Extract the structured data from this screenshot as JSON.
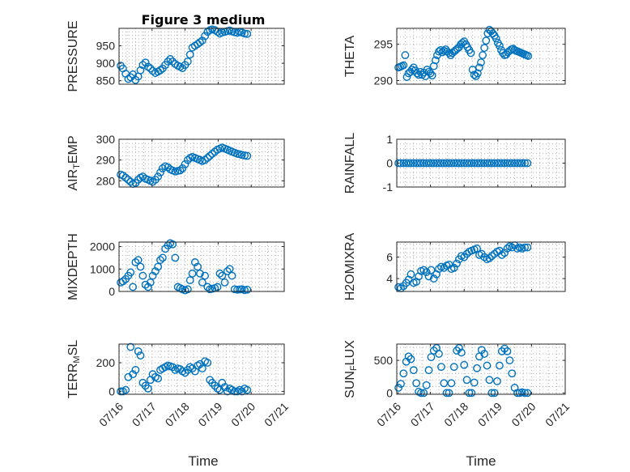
{
  "chart_data": {
    "type": "scatter",
    "title": "Figure 3 medium",
    "marker_color": "#0072BD",
    "xlabel": "Time",
    "x_tick_labels": [
      "07/16",
      "07/17",
      "07/18",
      "07/19",
      "07/20",
      "07/21"
    ],
    "xlim": [
      0,
      5
    ],
    "panels": [
      {
        "ylabel": "PRESSURE",
        "yticks": [
          850,
          900,
          950
        ],
        "ylim": [
          840,
          1000
        ],
        "grid": true,
        "series": [
          {
            "x": [
              0.05,
              0.12,
              0.2,
              0.28,
              0.35,
              0.42,
              0.5,
              0.58,
              0.65,
              0.72,
              0.8,
              0.88,
              0.95,
              1.02,
              1.1,
              1.18,
              1.25,
              1.32,
              1.4,
              1.48,
              1.55,
              1.62,
              1.7,
              1.78,
              1.85,
              1.92,
              2.0,
              2.08,
              2.15,
              2.22,
              2.3,
              2.38,
              2.45,
              2.52,
              2.6,
              2.68,
              2.75,
              2.82,
              2.9,
              2.98,
              3.05,
              3.12,
              3.2,
              3.28,
              3.35,
              3.42,
              3.5,
              3.58,
              3.65,
              3.72,
              3.8,
              3.88
            ],
            "y": [
              893,
              885,
              870,
              855,
              860,
              868,
              852,
              862,
              880,
              895,
              902,
              890,
              885,
              878,
              872,
              876,
              880,
              885,
              895,
              905,
              912,
              905,
              898,
              893,
              890,
              886,
              895,
              905,
              925,
              945,
              950,
              955,
              960,
              965,
              978,
              990,
              995,
              997,
              995,
              990,
              985,
              988,
              990,
              992,
              994,
              991,
              989,
              987,
              990,
              988,
              985,
              984
            ]
          }
        ]
      },
      {
        "ylabel": "THETA",
        "yticks": [
          290,
          295
        ],
        "ylim": [
          289.5,
          297.2
        ],
        "grid": true,
        "series": [
          {
            "x": [
              0.05,
              0.1,
              0.15,
              0.2,
              0.25,
              0.3,
              0.35,
              0.4,
              0.45,
              0.5,
              0.55,
              0.6,
              0.65,
              0.7,
              0.75,
              0.8,
              0.85,
              0.9,
              0.95,
              1.0,
              1.05,
              1.1,
              1.15,
              1.2,
              1.25,
              1.3,
              1.35,
              1.4,
              1.45,
              1.5,
              1.55,
              1.6,
              1.65,
              1.7,
              1.75,
              1.8,
              1.85,
              1.9,
              1.95,
              2.0,
              2.05,
              2.1,
              2.15,
              2.2,
              2.25,
              2.3,
              2.35,
              2.4,
              2.45,
              2.5,
              2.55,
              2.6,
              2.65,
              2.7,
              2.75,
              2.8,
              2.85,
              2.9,
              2.95,
              3.0,
              3.05,
              3.1,
              3.15,
              3.2,
              3.25,
              3.3,
              3.35,
              3.4,
              3.45,
              3.5,
              3.55,
              3.6,
              3.65,
              3.7,
              3.75,
              3.8,
              3.85,
              3.9
            ],
            "y": [
              291.8,
              291.9,
              292,
              292.1,
              293.5,
              290.5,
              291,
              291.2,
              291.5,
              291.8,
              291.4,
              291,
              290.8,
              291.2,
              290.8,
              291.1,
              290.6,
              291.5,
              291.2,
              291,
              290.7,
              292,
              292.8,
              293.5,
              294,
              294.2,
              293.9,
              294.1,
              294.3,
              294,
              293.8,
              293.5,
              293.8,
              294,
              294.2,
              294.4,
              294.6,
              295,
              295.2,
              295.4,
              295,
              294.6,
              294.2,
              293.8,
              291.5,
              290.8,
              290.6,
              291,
              291.8,
              292.5,
              293.5,
              294.5,
              295.5,
              296.5,
              297,
              296.8,
              296.5,
              296.2,
              295.8,
              295.2,
              294.8,
              294.2,
              293.8,
              293.5,
              293.6,
              293.9,
              294.1,
              294.3,
              294.4,
              294.2,
              294.1,
              294,
              293.9,
              293.8,
              293.7,
              293.6,
              293.5,
              293.4
            ]
          }
        ]
      },
      {
        "ylabel": "AIR_TEMP",
        "yticks": [
          280,
          290,
          300
        ],
        "ylim": [
          277,
          300
        ],
        "grid": true,
        "series": [
          {
            "x": [
              0.05,
              0.12,
              0.2,
              0.28,
              0.35,
              0.42,
              0.5,
              0.58,
              0.65,
              0.72,
              0.8,
              0.88,
              0.95,
              1.02,
              1.1,
              1.18,
              1.25,
              1.32,
              1.4,
              1.48,
              1.55,
              1.62,
              1.7,
              1.78,
              1.85,
              1.92,
              2.0,
              2.08,
              2.15,
              2.22,
              2.3,
              2.38,
              2.45,
              2.52,
              2.6,
              2.68,
              2.75,
              2.82,
              2.9,
              2.98,
              3.05,
              3.12,
              3.2,
              3.28,
              3.35,
              3.42,
              3.5,
              3.58,
              3.65,
              3.72,
              3.8,
              3.88
            ],
            "y": [
              283,
              282.5,
              281.5,
              280.5,
              279.5,
              278.5,
              279,
              280.5,
              281.5,
              282,
              281,
              280.5,
              280,
              279.5,
              280.5,
              282,
              284,
              286,
              287,
              286.5,
              285.5,
              285,
              284.5,
              284.8,
              285,
              286,
              288,
              290,
              291,
              291.5,
              291,
              290.5,
              290,
              289.5,
              290,
              291,
              292,
              293,
              294,
              295,
              295.5,
              296,
              295.5,
              295,
              294.5,
              294,
              293.5,
              293,
              292.8,
              292.5,
              292.2,
              292
            ]
          }
        ]
      },
      {
        "ylabel": "RAINFALL",
        "yticks": [
          -1,
          0,
          1
        ],
        "ylim": [
          -1,
          1
        ],
        "grid": true,
        "series": [
          {
            "x": [
              0.05,
              0.12,
              0.2,
              0.28,
              0.35,
              0.42,
              0.5,
              0.58,
              0.65,
              0.72,
              0.8,
              0.88,
              0.95,
              1.02,
              1.1,
              1.18,
              1.25,
              1.32,
              1.4,
              1.48,
              1.55,
              1.62,
              1.7,
              1.78,
              1.85,
              1.92,
              2.0,
              2.08,
              2.15,
              2.22,
              2.3,
              2.38,
              2.45,
              2.52,
              2.6,
              2.68,
              2.75,
              2.82,
              2.9,
              2.98,
              3.05,
              3.12,
              3.2,
              3.28,
              3.35,
              3.42,
              3.5,
              3.58,
              3.65,
              3.72,
              3.8,
              3.88
            ],
            "y": [
              0,
              0,
              0,
              0,
              0,
              0,
              0,
              0,
              0,
              0,
              0,
              0,
              0,
              0,
              0,
              0,
              0,
              0,
              0,
              0,
              0,
              0,
              0,
              0,
              0,
              0,
              0,
              0,
              0,
              0,
              0,
              0,
              0,
              0,
              0,
              0,
              0,
              0,
              0,
              0,
              0,
              0,
              0,
              0,
              0,
              0,
              0,
              0,
              0,
              0,
              0,
              0
            ]
          }
        ]
      },
      {
        "ylabel": "MIXDEPTH",
        "yticks": [
          0,
          1000,
          2000
        ],
        "ylim": [
          0,
          2200
        ],
        "grid": true,
        "series": [
          {
            "x": [
              0.05,
              0.12,
              0.2,
              0.28,
              0.35,
              0.42,
              0.5,
              0.58,
              0.65,
              0.72,
              0.8,
              0.88,
              0.95,
              1.02,
              1.1,
              1.18,
              1.25,
              1.32,
              1.4,
              1.48,
              1.55,
              1.62,
              1.7,
              1.78,
              1.85,
              1.92,
              2.0,
              2.08,
              2.15,
              2.22,
              2.3,
              2.38,
              2.45,
              2.52,
              2.6,
              2.68,
              2.75,
              2.82,
              2.9,
              2.98,
              3.05,
              3.12,
              3.2,
              3.28,
              3.35,
              3.42,
              3.5,
              3.58,
              3.65,
              3.72,
              3.8,
              3.88
            ],
            "y": [
              400,
              450,
              550,
              700,
              850,
              200,
              1300,
              1400,
              1100,
              700,
              300,
              200,
              400,
              700,
              900,
              1100,
              1400,
              1500,
              1900,
              2050,
              2150,
              2100,
              1500,
              200,
              150,
              100,
              50,
              100,
              500,
              800,
              1300,
              1100,
              800,
              400,
              700,
              200,
              100,
              120,
              150,
              200,
              800,
              700,
              400,
              900,
              1000,
              700,
              100,
              80,
              90,
              100,
              60,
              80
            ]
          }
        ]
      },
      {
        "ylabel": "H2OMIXRA",
        "yticks": [
          4,
          6
        ],
        "ylim": [
          2.8,
          7.4
        ],
        "grid": true,
        "series": [
          {
            "x": [
              0.05,
              0.12,
              0.2,
              0.28,
              0.35,
              0.42,
              0.5,
              0.58,
              0.65,
              0.72,
              0.8,
              0.88,
              0.95,
              1.02,
              1.1,
              1.18,
              1.25,
              1.32,
              1.4,
              1.48,
              1.55,
              1.62,
              1.7,
              1.78,
              1.85,
              1.92,
              2.0,
              2.08,
              2.15,
              2.22,
              2.3,
              2.38,
              2.45,
              2.52,
              2.6,
              2.68,
              2.75,
              2.82,
              2.9,
              2.98,
              3.05,
              3.12,
              3.2,
              3.28,
              3.35,
              3.42,
              3.5,
              3.58,
              3.65,
              3.72,
              3.8,
              3.88
            ],
            "y": [
              3.2,
              3.1,
              3.3,
              3.6,
              3.9,
              4.4,
              3.6,
              3.7,
              4.2,
              4.7,
              4.8,
              4.6,
              4.2,
              4.8,
              4.0,
              4.4,
              4.9,
              5.1,
              5.0,
              5.2,
              5.3,
              4.9,
              5.0,
              5.4,
              5.8,
              6.1,
              6.0,
              6.3,
              6.5,
              6.6,
              6.7,
              6.8,
              6.2,
              6.3,
              6.0,
              5.8,
              5.9,
              6.1,
              6.3,
              6.5,
              6.6,
              6.2,
              6.4,
              6.8,
              7.0,
              6.9,
              7.1,
              6.8,
              6.9,
              6.8,
              6.9,
              6.9
            ]
          }
        ]
      },
      {
        "ylabel": "TERR_MSL",
        "yticks": [
          0,
          200
        ],
        "ylim": [
          -20,
          330
        ],
        "grid": true,
        "series": [
          {
            "x": [
              0.05,
              0.12,
              0.2,
              0.28,
              0.35,
              0.42,
              0.5,
              0.58,
              0.65,
              0.72,
              0.8,
              0.88,
              0.95,
              1.02,
              1.1,
              1.18,
              1.25,
              1.32,
              1.4,
              1.48,
              1.55,
              1.62,
              1.7,
              1.78,
              1.85,
              1.92,
              2.0,
              2.08,
              2.15,
              2.22,
              2.3,
              2.38,
              2.45,
              2.52,
              2.6,
              2.68,
              2.75,
              2.82,
              2.9,
              2.98,
              3.05,
              3.12,
              3.2,
              3.28,
              3.35,
              3.42,
              3.5,
              3.58,
              3.65,
              3.72,
              3.8,
              3.88
            ],
            "y": [
              0,
              0,
              10,
              100,
              310,
              120,
              150,
              280,
              250,
              60,
              40,
              20,
              80,
              120,
              100,
              90,
              150,
              160,
              170,
              180,
              175,
              170,
              150,
              160,
              155,
              140,
              130,
              150,
              170,
              160,
              140,
              180,
              190,
              160,
              210,
              200,
              80,
              60,
              40,
              20,
              10,
              60,
              30,
              0,
              20,
              10,
              0,
              0,
              10,
              0,
              20,
              10
            ]
          }
        ]
      },
      {
        "ylabel": "SUN_FLUX",
        "yticks": [
          0,
          500
        ],
        "ylim": [
          -20,
          750
        ],
        "grid": true,
        "series": [
          {
            "x": [
              0.05,
              0.12,
              0.2,
              0.28,
              0.35,
              0.42,
              0.5,
              0.58,
              0.65,
              0.72,
              0.8,
              0.88,
              0.95,
              1.02,
              1.1,
              1.18,
              1.25,
              1.32,
              1.4,
              1.48,
              1.55,
              1.62,
              1.7,
              1.78,
              1.85,
              1.92,
              2.0,
              2.08,
              2.15,
              2.22,
              2.3,
              2.38,
              2.45,
              2.52,
              2.6,
              2.68,
              2.75,
              2.82,
              2.9,
              2.98,
              3.05,
              3.12,
              3.2,
              3.28,
              3.35,
              3.42,
              3.5,
              3.58,
              3.65,
              3.72,
              3.8,
              3.88
            ],
            "y": [
              80,
              140,
              300,
              480,
              560,
              520,
              350,
              150,
              20,
              0,
              0,
              120,
              350,
              550,
              650,
              690,
              600,
              400,
              150,
              0,
              0,
              150,
              400,
              650,
              690,
              620,
              430,
              200,
              0,
              0,
              160,
              380,
              560,
              660,
              600,
              420,
              200,
              0,
              0,
              180,
              420,
              640,
              680,
              640,
              500,
              300,
              80,
              0,
              0,
              10,
              0,
              0
            ]
          }
        ]
      }
    ]
  }
}
